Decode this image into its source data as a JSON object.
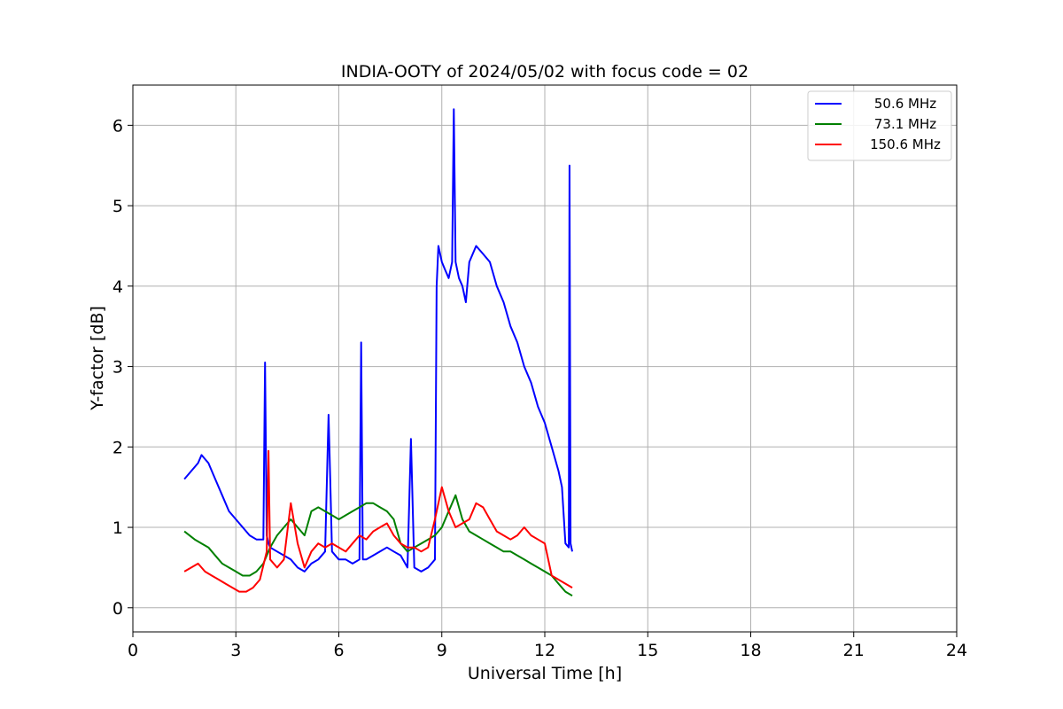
{
  "chart_data": {
    "type": "line",
    "title": "INDIA-OOTY of 2024/05/02 with focus code = 02",
    "xlabel": "Universal Time [h]",
    "ylabel": "Y-factor [dB]",
    "xlim": [
      0,
      24
    ],
    "ylim": [
      -0.3,
      6.5
    ],
    "xticks": [
      0,
      3,
      6,
      9,
      12,
      15,
      18,
      21,
      24
    ],
    "yticks": [
      0,
      1,
      2,
      3,
      4,
      5,
      6
    ],
    "grid": true,
    "legend_position": "top-right",
    "series": [
      {
        "name": "50.6 MHz",
        "color": "#0000ff",
        "x": [
          1.5,
          1.7,
          1.9,
          2.0,
          2.2,
          2.4,
          2.6,
          2.8,
          3.0,
          3.2,
          3.4,
          3.6,
          3.8,
          3.85,
          3.9,
          3.95,
          4.0,
          4.2,
          4.4,
          4.6,
          4.8,
          5.0,
          5.2,
          5.4,
          5.6,
          5.7,
          5.75,
          5.8,
          5.9,
          6.0,
          6.2,
          6.4,
          6.6,
          6.65,
          6.7,
          6.8,
          7.0,
          7.2,
          7.4,
          7.6,
          7.8,
          8.0,
          8.1,
          8.2,
          8.4,
          8.6,
          8.8,
          8.85,
          8.9,
          9.0,
          9.1,
          9.2,
          9.3,
          9.35,
          9.4,
          9.5,
          9.6,
          9.7,
          9.8,
          10.0,
          10.2,
          10.4,
          10.6,
          10.8,
          11.0,
          11.2,
          11.4,
          11.6,
          11.8,
          12.0,
          12.2,
          12.4,
          12.5,
          12.6,
          12.7,
          12.72,
          12.75,
          12.8
        ],
        "y": [
          1.6,
          1.7,
          1.8,
          1.9,
          1.8,
          1.6,
          1.4,
          1.2,
          1.1,
          1.0,
          0.9,
          0.85,
          0.85,
          3.05,
          0.9,
          0.8,
          0.75,
          0.7,
          0.65,
          0.6,
          0.5,
          0.45,
          0.55,
          0.6,
          0.7,
          2.4,
          1.6,
          0.7,
          0.65,
          0.6,
          0.6,
          0.55,
          0.6,
          3.3,
          0.6,
          0.6,
          0.65,
          0.7,
          0.75,
          0.7,
          0.65,
          0.5,
          2.1,
          0.5,
          0.45,
          0.5,
          0.6,
          4.0,
          4.5,
          4.3,
          4.2,
          4.1,
          4.3,
          6.2,
          4.3,
          4.1,
          4.0,
          3.8,
          4.3,
          4.5,
          4.4,
          4.3,
          4.0,
          3.8,
          3.5,
          3.3,
          3.0,
          2.8,
          2.5,
          2.3,
          2.0,
          1.7,
          1.5,
          0.8,
          0.75,
          5.5,
          0.8,
          0.7
        ]
      },
      {
        "name": "73.1 MHz",
        "color": "#008000",
        "x": [
          1.5,
          1.8,
          2.0,
          2.2,
          2.4,
          2.6,
          2.8,
          3.0,
          3.2,
          3.4,
          3.6,
          3.8,
          4.0,
          4.2,
          4.4,
          4.6,
          4.8,
          5.0,
          5.2,
          5.4,
          5.6,
          5.8,
          6.0,
          6.2,
          6.4,
          6.6,
          6.8,
          7.0,
          7.2,
          7.4,
          7.6,
          7.8,
          8.0,
          8.2,
          8.4,
          8.6,
          8.8,
          9.0,
          9.2,
          9.4,
          9.6,
          9.8,
          10.0,
          10.2,
          10.4,
          10.6,
          10.8,
          11.0,
          11.2,
          11.4,
          11.6,
          11.8,
          12.0,
          12.2,
          12.4,
          12.6,
          12.8
        ],
        "y": [
          0.95,
          0.85,
          0.8,
          0.75,
          0.65,
          0.55,
          0.5,
          0.45,
          0.4,
          0.4,
          0.45,
          0.55,
          0.75,
          0.9,
          1.0,
          1.1,
          1.0,
          0.9,
          1.2,
          1.25,
          1.2,
          1.15,
          1.1,
          1.15,
          1.2,
          1.25,
          1.3,
          1.3,
          1.25,
          1.2,
          1.1,
          0.8,
          0.7,
          0.75,
          0.8,
          0.85,
          0.9,
          1.0,
          1.2,
          1.4,
          1.1,
          0.95,
          0.9,
          0.85,
          0.8,
          0.75,
          0.7,
          0.7,
          0.65,
          0.6,
          0.55,
          0.5,
          0.45,
          0.4,
          0.3,
          0.2,
          0.15
        ]
      },
      {
        "name": "150.6 MHz",
        "color": "#ff0000",
        "x": [
          1.5,
          1.7,
          1.9,
          2.1,
          2.3,
          2.5,
          2.7,
          2.9,
          3.1,
          3.3,
          3.5,
          3.7,
          3.9,
          3.95,
          4.0,
          4.2,
          4.4,
          4.6,
          4.8,
          5.0,
          5.2,
          5.4,
          5.6,
          5.8,
          6.0,
          6.2,
          6.4,
          6.6,
          6.8,
          7.0,
          7.2,
          7.4,
          7.6,
          7.8,
          8.0,
          8.2,
          8.4,
          8.6,
          8.8,
          9.0,
          9.2,
          9.4,
          9.6,
          9.8,
          10.0,
          10.2,
          10.4,
          10.6,
          10.8,
          11.0,
          11.2,
          11.4,
          11.6,
          11.8,
          12.0,
          12.2,
          12.4,
          12.6,
          12.8
        ],
        "y": [
          0.45,
          0.5,
          0.55,
          0.45,
          0.4,
          0.35,
          0.3,
          0.25,
          0.2,
          0.2,
          0.25,
          0.35,
          0.7,
          1.95,
          0.6,
          0.5,
          0.6,
          1.3,
          0.8,
          0.5,
          0.7,
          0.8,
          0.75,
          0.8,
          0.75,
          0.7,
          0.8,
          0.9,
          0.85,
          0.95,
          1.0,
          1.05,
          0.9,
          0.8,
          0.75,
          0.75,
          0.7,
          0.75,
          1.1,
          1.5,
          1.2,
          1.0,
          1.05,
          1.1,
          1.3,
          1.25,
          1.1,
          0.95,
          0.9,
          0.85,
          0.9,
          1.0,
          0.9,
          0.85,
          0.8,
          0.4,
          0.35,
          0.3,
          0.25
        ]
      }
    ]
  }
}
